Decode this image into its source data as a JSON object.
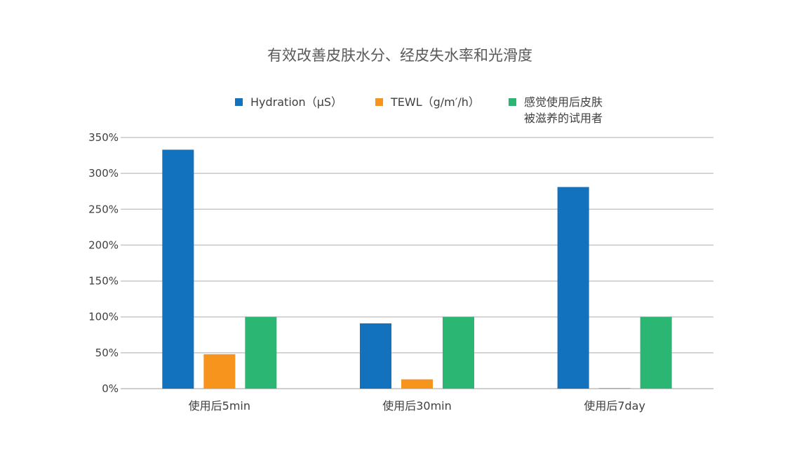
{
  "chart_data": {
    "type": "bar",
    "title": "有效改善皮肤水分、经皮失水率和光滑度",
    "categories": [
      "使用后5min",
      "使用后30min",
      "使用后7day"
    ],
    "series": [
      {
        "name": "Hydration（μS）",
        "values": [
          333,
          91,
          281
        ],
        "color": "#1272BE"
      },
      {
        "name": "TEWL（g/m′/h）",
        "values": [
          48,
          13,
          1
        ],
        "color": "#F7941D"
      },
      {
        "name_lines": [
          "感觉使用后皮肤",
          "被滋养的试用者"
        ],
        "values": [
          100,
          100,
          100
        ],
        "color": "#2BB673"
      }
    ],
    "yticks": [
      "0%",
      "50%",
      "100%",
      "150%",
      "200%",
      "250%",
      "300%",
      "350%"
    ],
    "ylim": [
      0,
      350
    ],
    "grid": true,
    "legend_position": "top"
  }
}
